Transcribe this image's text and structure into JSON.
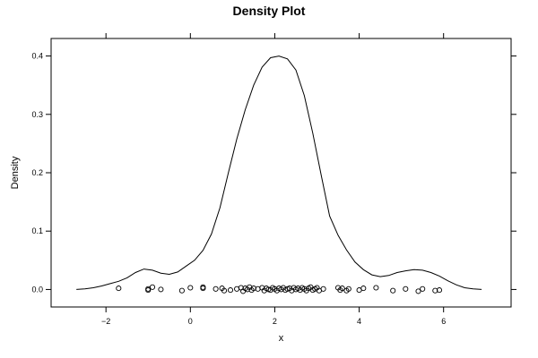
{
  "chart_data": {
    "type": "line",
    "title": "Density Plot",
    "xlabel": "x",
    "ylabel": "Density",
    "xlim": [
      -3.3,
      7.6
    ],
    "ylim": [
      -0.03,
      0.43
    ],
    "x_ticks": [
      -2,
      0,
      2,
      4,
      6
    ],
    "x_tick_labels": [
      "−2",
      "0",
      "2",
      "4",
      "6"
    ],
    "y_ticks": [
      0.0,
      0.1,
      0.2,
      0.3,
      0.4
    ],
    "y_tick_labels": [
      "0.0",
      "0.1",
      "0.2",
      "0.3",
      "0.4"
    ],
    "grid": false,
    "legend": "none",
    "series": [
      {
        "kind": "density-curve",
        "x": [
          -2.7,
          -2.5,
          -2.3,
          -2.1,
          -1.9,
          -1.7,
          -1.5,
          -1.3,
          -1.1,
          -0.9,
          -0.7,
          -0.5,
          -0.3,
          -0.1,
          0.1,
          0.3,
          0.5,
          0.7,
          0.9,
          1.1,
          1.3,
          1.5,
          1.7,
          1.9,
          2.1,
          2.3,
          2.5,
          2.7,
          2.9,
          3.1,
          3.3,
          3.5,
          3.7,
          3.9,
          4.1,
          4.3,
          4.5,
          4.7,
          4.9,
          5.1,
          5.3,
          5.5,
          5.7,
          5.9,
          6.1,
          6.3,
          6.5,
          6.7,
          6.9
        ],
        "y": [
          0.0,
          0.001,
          0.003,
          0.006,
          0.01,
          0.014,
          0.02,
          0.029,
          0.035,
          0.033,
          0.028,
          0.026,
          0.03,
          0.04,
          0.05,
          0.067,
          0.095,
          0.14,
          0.2,
          0.258,
          0.308,
          0.35,
          0.381,
          0.397,
          0.4,
          0.395,
          0.376,
          0.332,
          0.268,
          0.196,
          0.126,
          0.093,
          0.068,
          0.047,
          0.034,
          0.025,
          0.022,
          0.024,
          0.029,
          0.032,
          0.034,
          0.033,
          0.029,
          0.023,
          0.015,
          0.008,
          0.003,
          0.001,
          0.0
        ]
      },
      {
        "kind": "jittered-points",
        "points": [
          [
            -1.7,
            0.002
          ],
          [
            -1.0,
            -0.001
          ],
          [
            -1.0,
            0.001
          ],
          [
            -0.9,
            0.004
          ],
          [
            -0.7,
            0.0
          ],
          [
            -0.2,
            -0.002
          ],
          [
            0.0,
            0.003
          ],
          [
            0.3,
            0.002
          ],
          [
            0.3,
            0.004
          ],
          [
            0.6,
            0.001
          ],
          [
            0.75,
            0.002
          ],
          [
            0.8,
            -0.002
          ],
          [
            0.95,
            -0.001
          ],
          [
            1.1,
            0.001
          ],
          [
            1.2,
            0.003
          ],
          [
            1.25,
            -0.003
          ],
          [
            1.3,
            0.002
          ],
          [
            1.35,
            0.0
          ],
          [
            1.4,
            0.004
          ],
          [
            1.45,
            -0.001
          ],
          [
            1.5,
            0.002
          ],
          [
            1.6,
            0.001
          ],
          [
            1.7,
            0.003
          ],
          [
            1.75,
            -0.002
          ],
          [
            1.8,
            0.002
          ],
          [
            1.85,
            0.0
          ],
          [
            1.9,
            -0.001
          ],
          [
            1.95,
            0.003
          ],
          [
            2.0,
            0.001
          ],
          [
            2.05,
            -0.002
          ],
          [
            2.1,
            0.002
          ],
          [
            2.15,
            0.0
          ],
          [
            2.2,
            0.003
          ],
          [
            2.25,
            -0.001
          ],
          [
            2.3,
            0.001
          ],
          [
            2.35,
            0.002
          ],
          [
            2.4,
            -0.002
          ],
          [
            2.45,
            0.003
          ],
          [
            2.5,
            0.0
          ],
          [
            2.55,
            0.002
          ],
          [
            2.6,
            -0.001
          ],
          [
            2.65,
            0.003
          ],
          [
            2.7,
            0.001
          ],
          [
            2.75,
            -0.002
          ],
          [
            2.8,
            0.002
          ],
          [
            2.85,
            0.004
          ],
          [
            2.9,
            -0.001
          ],
          [
            2.95,
            0.001
          ],
          [
            3.0,
            0.003
          ],
          [
            3.05,
            -0.002
          ],
          [
            3.15,
            0.001
          ],
          [
            3.5,
            0.003
          ],
          [
            3.55,
            -0.001
          ],
          [
            3.6,
            0.002
          ],
          [
            3.7,
            -0.002
          ],
          [
            3.75,
            0.001
          ],
          [
            4.0,
            -0.001
          ],
          [
            4.1,
            0.002
          ],
          [
            4.4,
            0.003
          ],
          [
            4.8,
            -0.002
          ],
          [
            5.1,
            0.001
          ],
          [
            5.4,
            -0.003
          ],
          [
            5.5,
            0.001
          ],
          [
            5.8,
            -0.002
          ],
          [
            5.9,
            -0.001
          ]
        ]
      }
    ]
  }
}
